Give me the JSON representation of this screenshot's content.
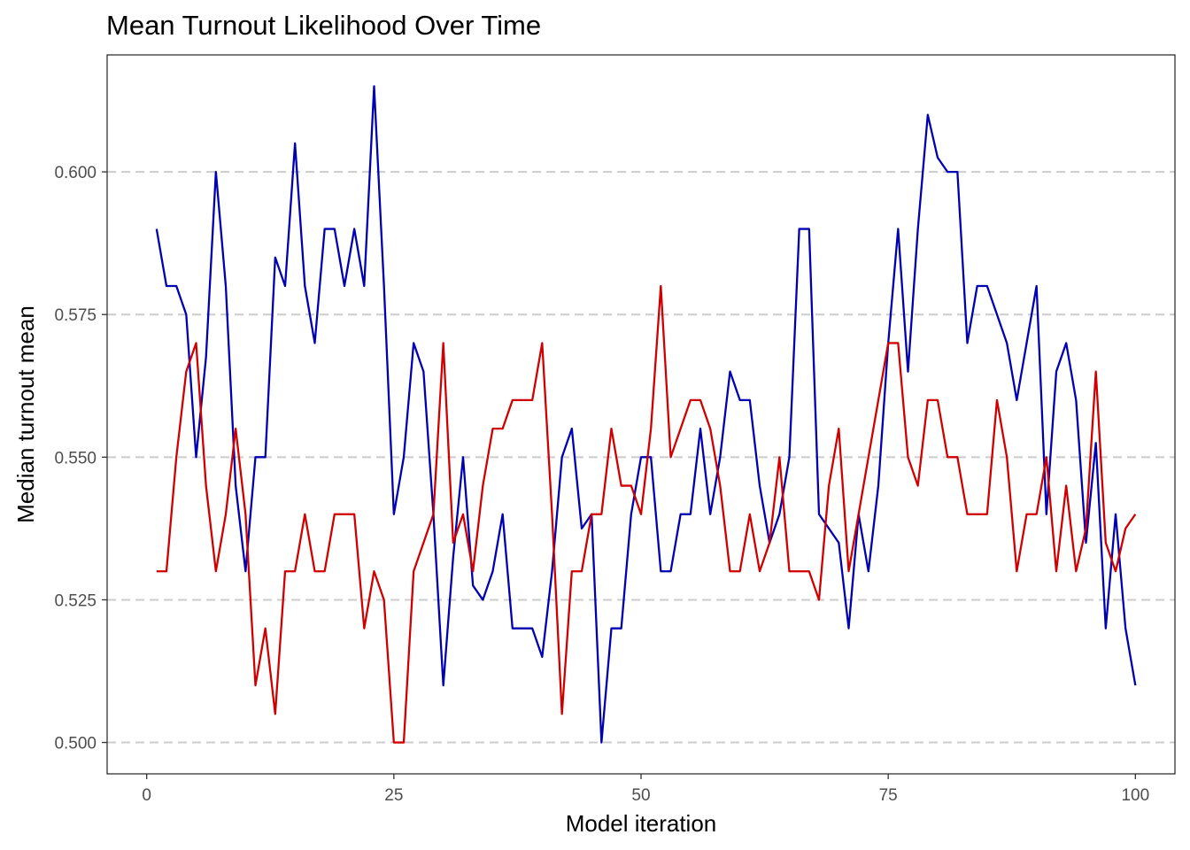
{
  "chart_data": {
    "type": "line",
    "title": "Mean Turnout Likelihood Over Time",
    "xlabel": "Model iteration",
    "ylabel": "Median turnout mean",
    "xlim": [
      -4,
      104
    ],
    "ylim": [
      0.4945,
      0.6205
    ],
    "xticks": [
      0,
      25,
      50,
      75,
      100
    ],
    "xtick_labels": [
      "0",
      "25",
      "50",
      "75",
      "100"
    ],
    "yticks": [
      0.5,
      0.525,
      0.55,
      0.575,
      0.6
    ],
    "ytick_labels": [
      "0.500",
      "0.525",
      "0.550",
      "0.575",
      "0.600"
    ],
    "grid": "horizontal dashed",
    "x": [
      1,
      2,
      3,
      4,
      5,
      6,
      7,
      8,
      9,
      10,
      11,
      12,
      13,
      14,
      15,
      16,
      17,
      18,
      19,
      20,
      21,
      22,
      23,
      24,
      25,
      26,
      27,
      28,
      29,
      30,
      31,
      32,
      33,
      34,
      35,
      36,
      37,
      38,
      39,
      40,
      41,
      42,
      43,
      44,
      45,
      46,
      47,
      48,
      49,
      50,
      51,
      52,
      53,
      54,
      55,
      56,
      57,
      58,
      59,
      60,
      61,
      62,
      63,
      64,
      65,
      66,
      67,
      68,
      69,
      70,
      71,
      72,
      73,
      74,
      75,
      76,
      77,
      78,
      79,
      80,
      81,
      82,
      83,
      84,
      85,
      86,
      87,
      88,
      89,
      90,
      91,
      92,
      93,
      94,
      95,
      96,
      97,
      98,
      99,
      100
    ],
    "series": [
      {
        "color": "#0000b3",
        "values": [
          0.59,
          0.58,
          0.58,
          0.575,
          0.55,
          0.5675,
          0.6,
          0.58,
          0.545,
          0.53,
          0.55,
          0.55,
          0.585,
          0.58,
          0.605,
          0.58,
          0.57,
          0.59,
          0.59,
          0.58,
          0.59,
          0.58,
          0.615,
          0.58,
          0.54,
          0.55,
          0.57,
          0.565,
          0.54,
          0.51,
          0.5325,
          0.55,
          0.5275,
          0.525,
          0.53,
          0.54,
          0.52,
          0.52,
          0.52,
          0.515,
          0.53,
          0.55,
          0.555,
          0.5375,
          0.54,
          0.5,
          0.52,
          0.52,
          0.54,
          0.55,
          0.55,
          0.53,
          0.53,
          0.54,
          0.54,
          0.555,
          0.54,
          0.55,
          0.565,
          0.56,
          0.56,
          0.545,
          0.535,
          0.54,
          0.55,
          0.59,
          0.59,
          0.54,
          0.5375,
          0.535,
          0.52,
          0.54,
          0.53,
          0.545,
          0.57,
          0.59,
          0.565,
          0.59,
          0.61,
          0.6025,
          0.6,
          0.6,
          0.57,
          0.58,
          0.58,
          0.575,
          0.57,
          0.56,
          0.57,
          0.58,
          0.54,
          0.565,
          0.57,
          0.56,
          0.535,
          0.5525,
          0.52,
          0.54,
          0.52,
          0.51
        ]
      },
      {
        "color": "#d10000",
        "values": [
          0.53,
          0.53,
          0.55,
          0.565,
          0.57,
          0.545,
          0.53,
          0.54,
          0.555,
          0.54,
          0.51,
          0.52,
          0.505,
          0.53,
          0.53,
          0.54,
          0.53,
          0.53,
          0.54,
          0.54,
          0.54,
          0.52,
          0.53,
          0.525,
          0.5,
          0.5,
          0.53,
          0.535,
          0.54,
          0.57,
          0.535,
          0.54,
          0.53,
          0.545,
          0.555,
          0.555,
          0.56,
          0.56,
          0.56,
          0.57,
          0.54,
          0.505,
          0.53,
          0.53,
          0.54,
          0.54,
          0.555,
          0.545,
          0.545,
          0.54,
          0.555,
          0.58,
          0.55,
          0.555,
          0.56,
          0.56,
          0.555,
          0.545,
          0.53,
          0.53,
          0.54,
          0.53,
          0.535,
          0.55,
          0.53,
          0.53,
          0.53,
          0.525,
          0.545,
          0.555,
          0.53,
          0.54,
          0.55,
          0.56,
          0.57,
          0.57,
          0.55,
          0.545,
          0.56,
          0.56,
          0.55,
          0.55,
          0.54,
          0.54,
          0.54,
          0.56,
          0.55,
          0.53,
          0.54,
          0.54,
          0.55,
          0.53,
          0.545,
          0.53,
          0.5375,
          0.565,
          0.535,
          0.53,
          0.5375,
          0.54
        ]
      }
    ]
  }
}
